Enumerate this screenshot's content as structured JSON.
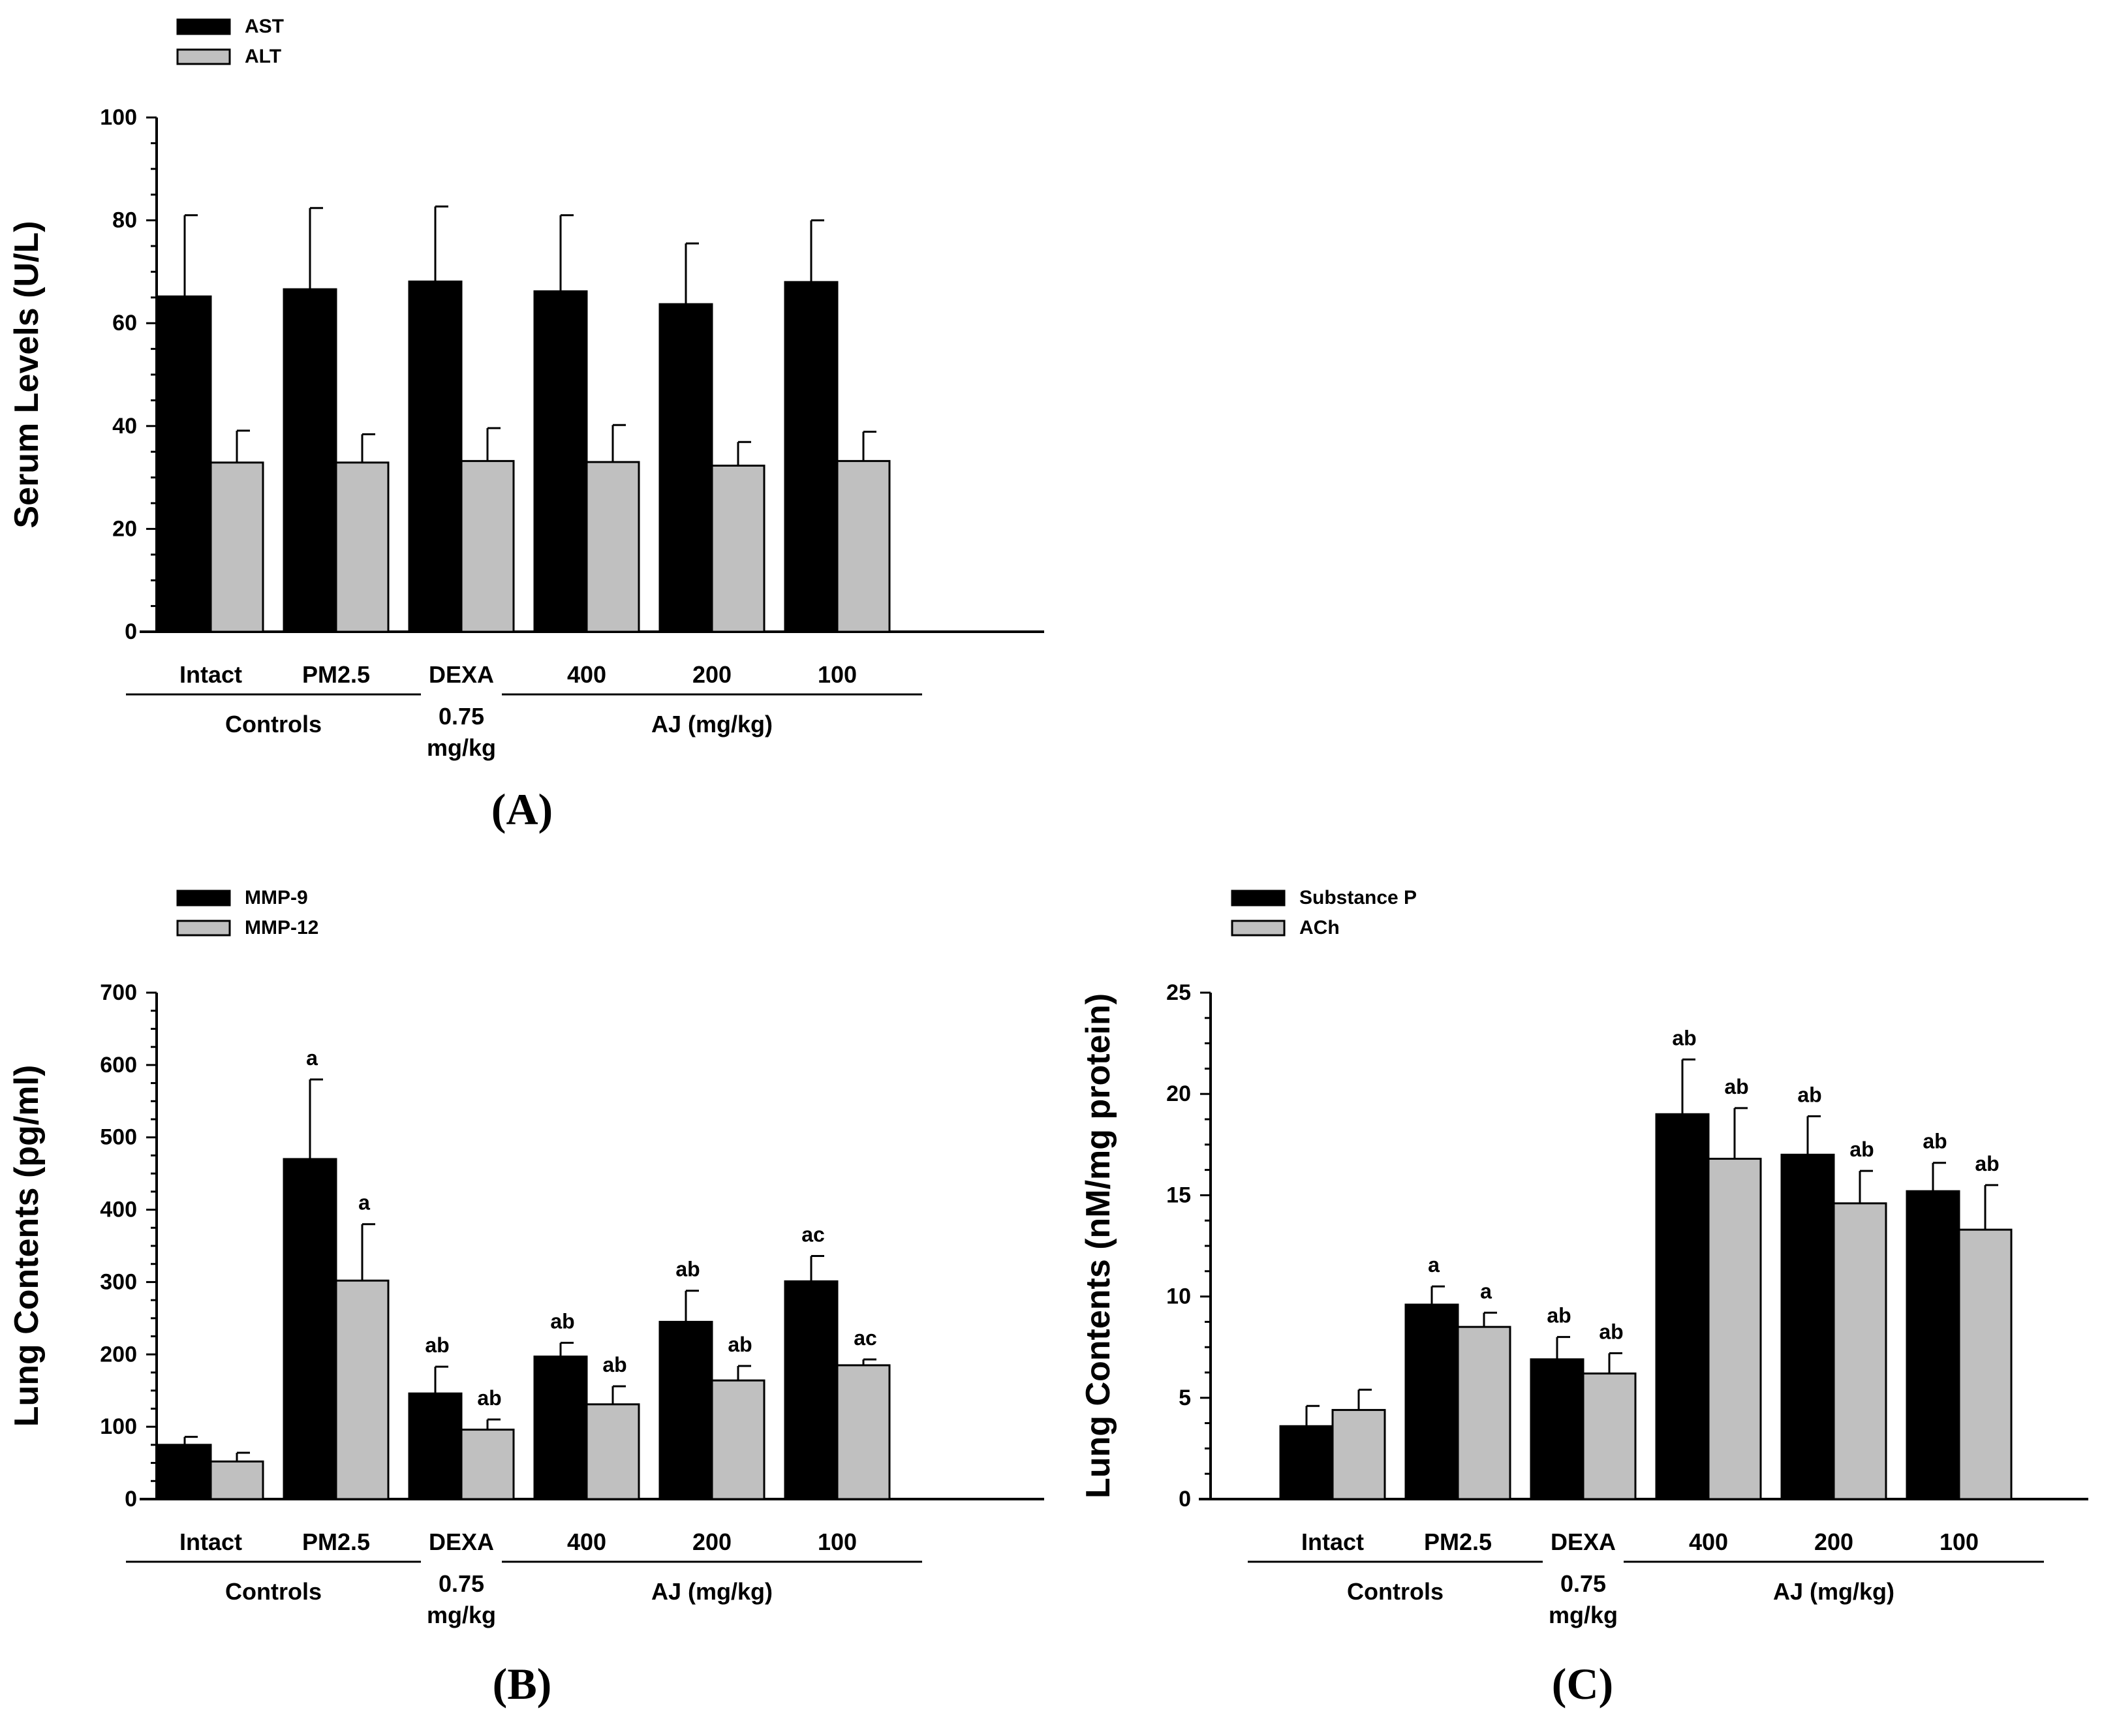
{
  "figure": {
    "categories": [
      "Intact",
      "PM2.5",
      "DEXA",
      "400",
      "200",
      "100"
    ],
    "group_labels": {
      "controls": "Controls",
      "dexa_line1": "0.75",
      "dexa_line2": "mg/kg",
      "aj": "AJ (mg/kg)"
    }
  },
  "chart_data": [
    {
      "type": "bar",
      "panel": "(A)",
      "panel_letter": "A",
      "title": "",
      "xlabel": "",
      "ylabel": "Serum Levels (U/L)",
      "ylim": [
        0,
        100
      ],
      "yticks": [
        0,
        20,
        40,
        60,
        80,
        100
      ],
      "categories": [
        "Intact",
        "PM2.5",
        "DEXA",
        "400",
        "200",
        "100"
      ],
      "legend_position": "top-left",
      "series": [
        {
          "name": "AST",
          "color": "#000000",
          "values": [
            65.2,
            66.6,
            68.1,
            66.2,
            63.7,
            68.0
          ],
          "errors": [
            15.8,
            15.8,
            14.6,
            14.8,
            11.8,
            12.0
          ],
          "labels": [
            "",
            "",
            "",
            "",
            "",
            ""
          ]
        },
        {
          "name": "ALT",
          "color": "#c0c0c0",
          "values": [
            32.9,
            32.9,
            33.2,
            33.0,
            32.3,
            33.2
          ],
          "errors": [
            6.2,
            5.5,
            6.4,
            7.2,
            4.6,
            5.7
          ],
          "labels": [
            "",
            "",
            "",
            "",
            "",
            ""
          ]
        }
      ]
    },
    {
      "type": "bar",
      "panel": "(B)",
      "panel_letter": "B",
      "title": "",
      "xlabel": "",
      "ylabel": "Lung Contents (pg/ml)",
      "ylim": [
        0,
        700
      ],
      "yticks": [
        0,
        100,
        200,
        300,
        400,
        500,
        600,
        700
      ],
      "categories": [
        "Intact",
        "PM2.5",
        "DEXA",
        "400",
        "200",
        "100"
      ],
      "legend_position": "top-left",
      "series": [
        {
          "name": "MMP-9",
          "color": "#000000",
          "values": [
            75,
            470,
            146,
            197,
            245,
            301
          ],
          "errors": [
            11,
            110,
            37,
            19,
            43,
            35
          ],
          "labels": [
            "",
            "a",
            "ab",
            "ab",
            "ab",
            "ac"
          ]
        },
        {
          "name": "MMP-12",
          "color": "#c0c0c0",
          "values": [
            52,
            302,
            96,
            131,
            164,
            185
          ],
          "errors": [
            12,
            78,
            14,
            25,
            20,
            8
          ],
          "labels": [
            "",
            "a",
            "ab",
            "ab",
            "ab",
            "ac"
          ]
        }
      ]
    },
    {
      "type": "bar",
      "panel": "(C)",
      "panel_letter": "C",
      "title": "",
      "xlabel": "",
      "ylabel": "Lung Contents (nM/mg protein)",
      "ylim": [
        0,
        25
      ],
      "yticks": [
        0,
        5,
        10,
        15,
        20,
        25
      ],
      "categories": [
        "Intact",
        "PM2.5",
        "DEXA",
        "400",
        "200",
        "100"
      ],
      "legend_position": "top-left",
      "series": [
        {
          "name": "Substance P",
          "color": "#000000",
          "values": [
            3.6,
            9.6,
            6.9,
            19.0,
            17.0,
            15.2
          ],
          "errors": [
            1.0,
            0.9,
            1.1,
            2.7,
            1.9,
            1.4
          ],
          "labels": [
            "",
            "a",
            "ab",
            "ab",
            "ab",
            "ab"
          ]
        },
        {
          "name": "ACh",
          "color": "#c0c0c0",
          "values": [
            4.4,
            8.5,
            6.2,
            16.8,
            14.6,
            13.3
          ],
          "errors": [
            1.0,
            0.7,
            1.0,
            2.5,
            1.6,
            2.2
          ],
          "labels": [
            "",
            "a",
            "ab",
            "ab",
            "ab",
            "ab"
          ]
        }
      ]
    }
  ]
}
